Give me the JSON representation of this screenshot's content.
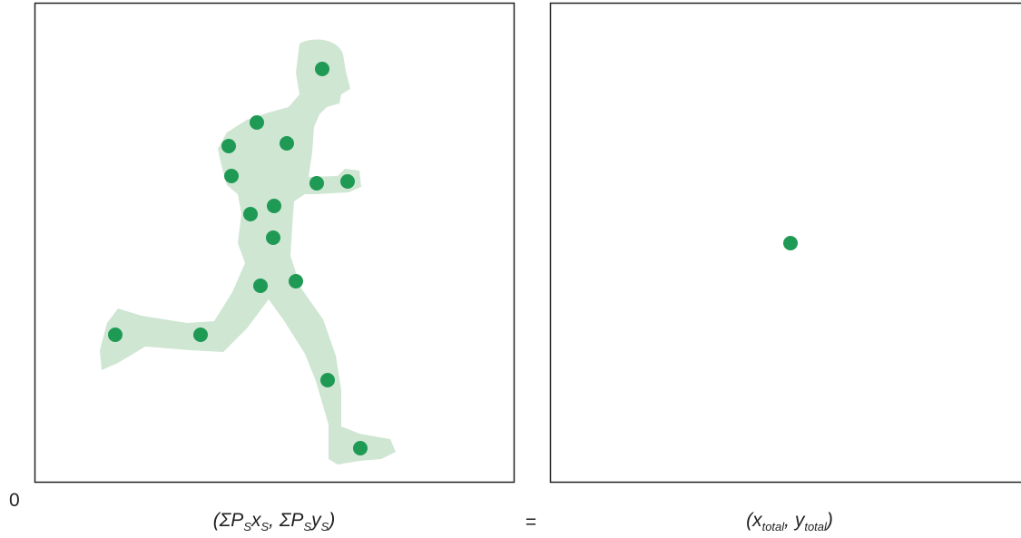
{
  "zero_label": "0",
  "caption_left": {
    "parts": [
      "(ΣP",
      "S",
      "x",
      "S",
      ", ΣP",
      "S",
      "y",
      "S",
      ")"
    ]
  },
  "equals": "=",
  "caption_right": {
    "parts": [
      "(x",
      "total",
      ", y",
      "total",
      ")"
    ]
  }
}
